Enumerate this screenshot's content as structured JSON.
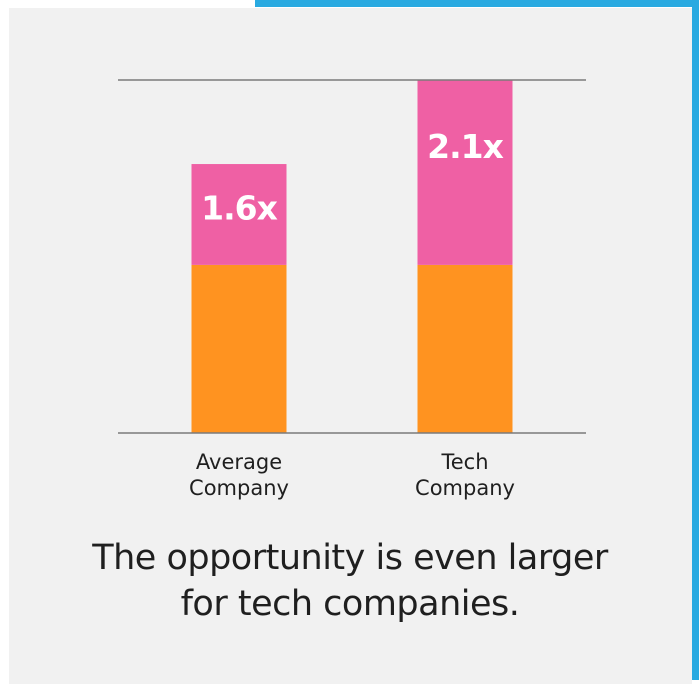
{
  "colors": {
    "accent": "#29aae1",
    "card_background": "#f1f1f1",
    "base_segment": "#ff9320",
    "uplift_segment": "#ef60a4",
    "axis_line": "#7a7a7a",
    "text": "#1f1f1f",
    "data_label": "#ffffff"
  },
  "chart_data": {
    "type": "bar",
    "stacked": true,
    "categories": [
      "Average Company",
      "Tech Company"
    ],
    "category_label_lines": [
      [
        "Average",
        "Company"
      ],
      [
        "Tech",
        "Company"
      ]
    ],
    "series": [
      {
        "values": [
          1.0,
          1.0
        ]
      },
      {
        "values": [
          0.6,
          1.1
        ]
      }
    ],
    "data_labels": [
      "1.6x",
      "2.1x"
    ],
    "ylim": [
      0,
      2.1
    ],
    "grid": false,
    "title": "",
    "xlabel": "",
    "ylabel": ""
  },
  "caption": {
    "line1": "The opportunity is even larger",
    "line2": "for tech companies."
  }
}
